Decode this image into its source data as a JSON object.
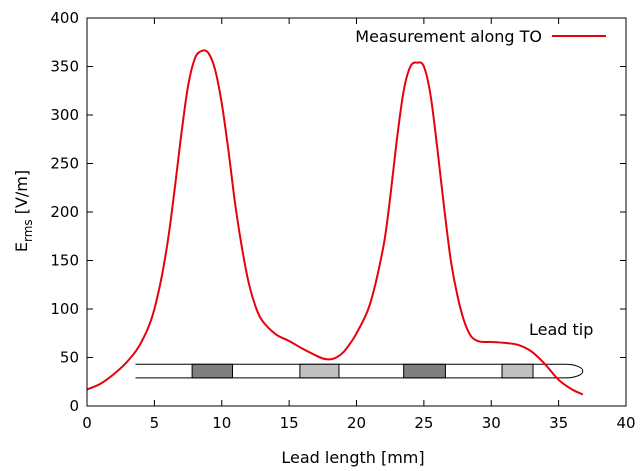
{
  "chart_data": {
    "type": "line",
    "title": "",
    "xlabel": "Lead length [mm]",
    "ylabel_main": "E",
    "ylabel_sub": "rms",
    "ylabel_unit": " [V/m]",
    "xlim": [
      0,
      40
    ],
    "ylim": [
      0,
      400
    ],
    "xticks": [
      "0",
      "5",
      "10",
      "15",
      "20",
      "25",
      "30",
      "35",
      "40"
    ],
    "yticks": [
      "0",
      "50",
      "100",
      "150",
      "200",
      "250",
      "300",
      "350",
      "400"
    ],
    "grid": false,
    "legend_position": "top-right",
    "series": [
      {
        "name": "Measurement along TO",
        "color": "#e8000b",
        "x": [
          0,
          1,
          2,
          3,
          4,
          5,
          6,
          7,
          7.5,
          8,
          8.5,
          9,
          9.5,
          10,
          10.5,
          11,
          11.5,
          12,
          12.5,
          13,
          14,
          15,
          16,
          17,
          17.5,
          18,
          18.5,
          19,
          19.5,
          20,
          21,
          22,
          22.5,
          23,
          23.5,
          24,
          24.5,
          25,
          25.5,
          26,
          26.5,
          27,
          27.5,
          28,
          28.5,
          29,
          29.5,
          30,
          31,
          32,
          33,
          34,
          35,
          36,
          36.8
        ],
        "y": [
          17,
          23,
          33,
          46,
          65,
          100,
          170,
          280,
          330,
          358,
          366,
          364,
          347,
          312,
          263,
          208,
          163,
          127,
          103,
          88,
          74,
          67,
          59,
          52,
          49,
          48,
          50,
          55,
          64,
          75,
          105,
          165,
          215,
          275,
          325,
          350,
          354,
          350,
          320,
          265,
          205,
          150,
          113,
          87,
          72,
          67,
          66,
          66,
          65,
          63,
          56,
          43,
          27,
          17,
          12
        ]
      }
    ],
    "annotations": [
      {
        "text": "Lead tip"
      }
    ],
    "lead_diagram": {
      "description_color_dark": "#7f7f7f",
      "description_color_light": "#c0c0c0",
      "electrodes_mm": [
        {
          "start": 7.8,
          "end": 10.8,
          "shade": "dark"
        },
        {
          "start": 15.8,
          "end": 18.7,
          "shade": "light"
        },
        {
          "start": 23.5,
          "end": 26.6,
          "shade": "dark"
        },
        {
          "start": 30.8,
          "end": 33.1,
          "shade": "light"
        }
      ],
      "body_start_mm": 3.6,
      "body_end_mm": 35.5,
      "tip_end_mm": 36.8,
      "y_top": 43,
      "y_bottom": 29
    }
  }
}
